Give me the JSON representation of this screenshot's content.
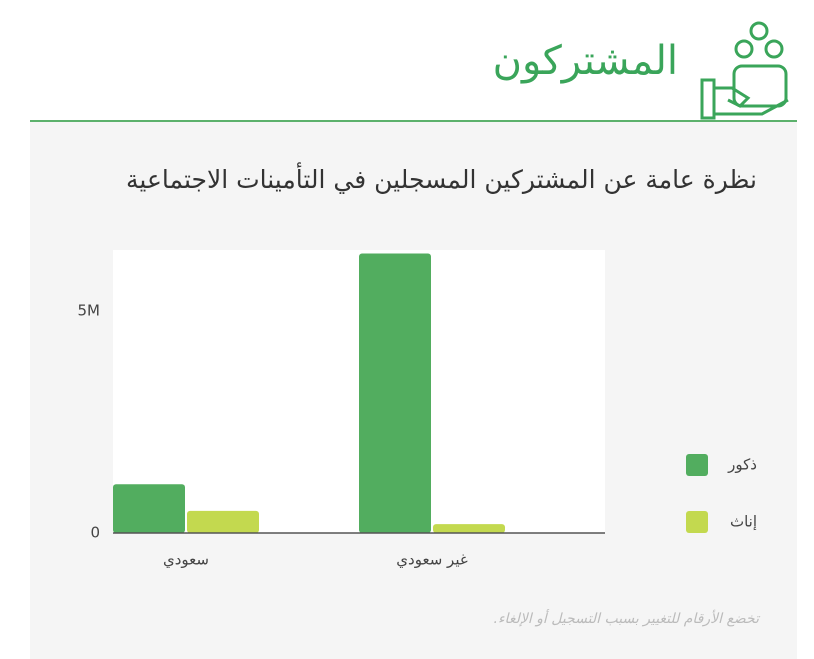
{
  "header": {
    "title": "المشتركون"
  },
  "chart_data": {
    "type": "bar",
    "title": "نظرة عامة عن المشتركين المسجلين في التأمينات الاجتماعية",
    "categories": [
      "سعودي",
      "غير سعودي"
    ],
    "series": [
      {
        "name": "ذكور",
        "color": "#52ad5f",
        "values": [
          1100000,
          6300000
        ]
      },
      {
        "name": "إناث",
        "color": "#c3d94f",
        "values": [
          500000,
          200000
        ]
      }
    ],
    "ylim": [
      0,
      6380000
    ],
    "yticks": [
      0,
      {
        "value": 5000000,
        "label": "5M"
      }
    ],
    "footnote": "تخضع الأرقام للتغيير بسبب التسجيل أو الإلغاء."
  }
}
